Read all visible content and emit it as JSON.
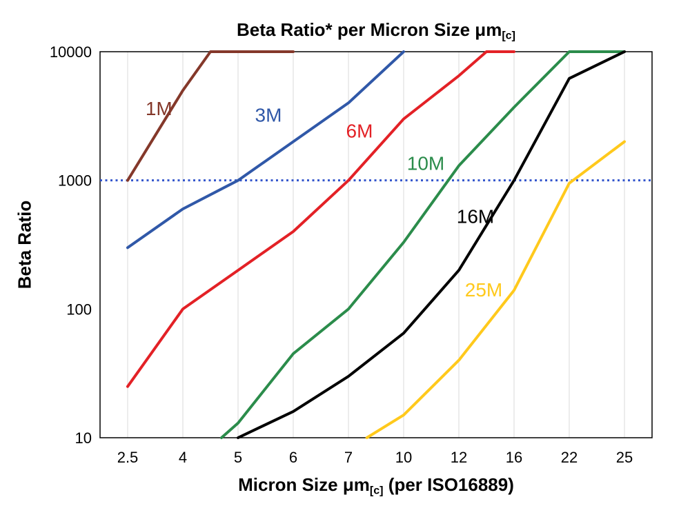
{
  "title": {
    "prefix": "Beta Ratio* per Micron Size ",
    "mu": "μm",
    "sub": "[c]"
  },
  "y_axis": {
    "label": "Beta Ratio"
  },
  "x_axis": {
    "label_prefix": "Micron Size ",
    "label_mu": "μm",
    "label_sub": "[c]",
    "label_suffix": " (per ISO16889)"
  },
  "chart_data": {
    "type": "line",
    "title": "Beta Ratio* per Micron Size μm[c]",
    "xlabel": "Micron Size μm[c] (per ISO16889)",
    "ylabel": "Beta Ratio",
    "x_categories": [
      2.5,
      4,
      5,
      6,
      7,
      10,
      12,
      16,
      22,
      25
    ],
    "y_scale": "log",
    "ylim": [
      10,
      10000
    ],
    "y_ticks": [
      10,
      100,
      1000,
      10000
    ],
    "grid": "vertical-only",
    "grid_color": "#d9d9d9",
    "border_color": "#000000",
    "background": "#ffffff",
    "reference_line": {
      "y": 1000,
      "color": "#3355CC",
      "style": "dotted"
    },
    "legend_position": "inline-labels",
    "series": [
      {
        "name": "1M",
        "color": "#84382A",
        "label_pos": [
          3.35,
          3600
        ],
        "points": [
          [
            2.5,
            1000
          ],
          [
            4,
            5000
          ],
          [
            4.5,
            10000
          ],
          [
            6,
            10000
          ]
        ]
      },
      {
        "name": "3M",
        "color": "#3058A8",
        "label_pos": [
          5.55,
          3200
        ],
        "points": [
          [
            2.5,
            300
          ],
          [
            4,
            600
          ],
          [
            5,
            1000
          ],
          [
            6,
            2000
          ],
          [
            7,
            4000
          ],
          [
            10,
            10000
          ]
        ]
      },
      {
        "name": "6M",
        "color": "#E32126",
        "label_pos": [
          7.6,
          2400
        ],
        "points": [
          [
            2.5,
            25
          ],
          [
            4,
            100
          ],
          [
            5,
            200
          ],
          [
            6,
            400
          ],
          [
            7,
            1000
          ],
          [
            10,
            3000
          ],
          [
            12,
            6500
          ],
          [
            14,
            10000
          ],
          [
            16,
            10000
          ]
        ]
      },
      {
        "name": "10M",
        "color": "#2B8C4B",
        "label_pos": [
          10.8,
          1350
        ],
        "points": [
          [
            4.7,
            10
          ],
          [
            5,
            13
          ],
          [
            6,
            45
          ],
          [
            7,
            100
          ],
          [
            10,
            330
          ],
          [
            12,
            1300
          ],
          [
            16,
            3700
          ],
          [
            22,
            10000
          ],
          [
            25,
            10000
          ]
        ]
      },
      {
        "name": "16M",
        "color": "#000000",
        "label_pos": [
          13.2,
          520
        ],
        "points": [
          [
            5,
            10
          ],
          [
            6,
            16
          ],
          [
            7,
            30
          ],
          [
            10,
            65
          ],
          [
            12,
            200
          ],
          [
            16,
            1000
          ],
          [
            22,
            6200
          ],
          [
            25,
            10000
          ]
        ]
      },
      {
        "name": "25M",
        "color": "#FFC91C",
        "label_pos": [
          13.8,
          140
        ],
        "points": [
          [
            8,
            10
          ],
          [
            10,
            15
          ],
          [
            12,
            40
          ],
          [
            16,
            140
          ],
          [
            22,
            950
          ],
          [
            25,
            2000
          ]
        ]
      }
    ]
  }
}
